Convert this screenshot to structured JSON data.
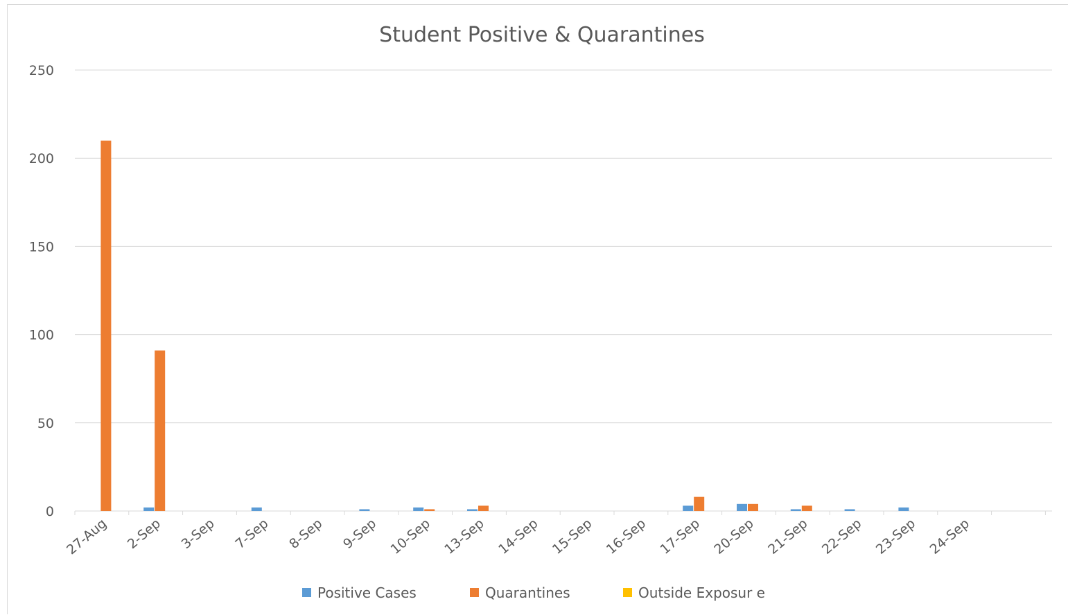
{
  "chart_data": {
    "type": "bar",
    "title": "Student Positive & Quarantines",
    "xlabel": "",
    "ylabel": "",
    "ylim": [
      0,
      250
    ],
    "yticks": [
      0,
      50,
      100,
      150,
      200,
      250
    ],
    "grid": true,
    "legend_position": "bottom",
    "categories": [
      "27-Aug",
      "2-Sep",
      "3-Sep",
      "7-Sep",
      "8-Sep",
      "9-Sep",
      "10-Sep",
      "13-Sep",
      "14-Sep",
      "15-Sep",
      "16-Sep",
      "17-Sep",
      "20-Sep",
      "21-Sep",
      "22-Sep",
      "23-Sep",
      "24-Sep"
    ],
    "series": [
      {
        "name": "Positive Cases",
        "color": "#5b9bd5",
        "values": [
          0,
          2,
          0,
          2,
          0,
          1,
          2,
          1,
          0,
          0,
          0,
          3,
          4,
          1,
          1,
          2,
          0
        ]
      },
      {
        "name": "Quarantines",
        "color": "#ed7d31",
        "values": [
          210,
          91,
          0,
          0,
          0,
          0,
          1,
          3,
          0,
          0,
          0,
          8,
          4,
          3,
          0,
          0,
          0
        ]
      },
      {
        "name": "Outside Exposure",
        "color": "#ffc000",
        "values": [
          0,
          0,
          0,
          0,
          0,
          0,
          0,
          0,
          0,
          0,
          0,
          0,
          0,
          0,
          0,
          0,
          0
        ]
      }
    ]
  },
  "legend": {
    "items": [
      {
        "label": "Positive Cases",
        "color": "#5b9bd5"
      },
      {
        "label": "Quarantines",
        "color": "#ed7d31"
      },
      {
        "label": "Outside Exposur e",
        "color": "#ffc000"
      }
    ]
  }
}
